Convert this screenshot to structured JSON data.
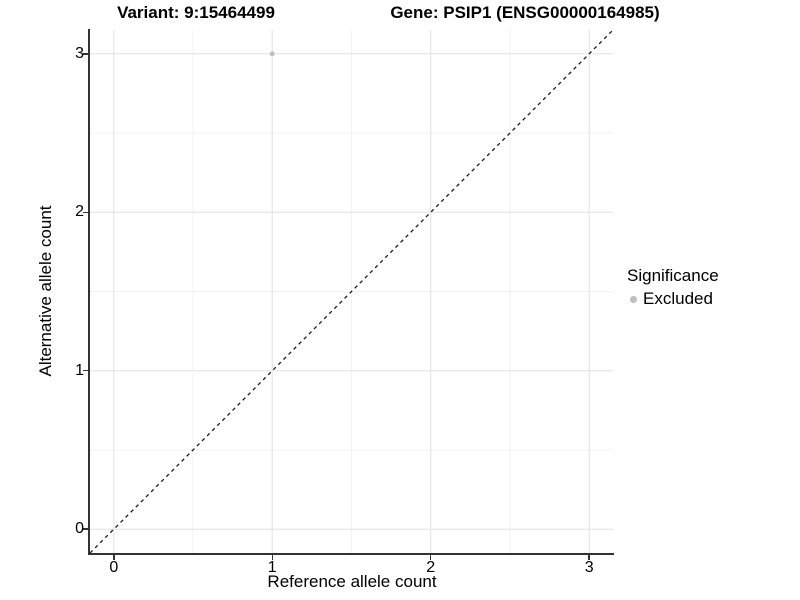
{
  "chart_data": {
    "type": "scatter",
    "title_left": "Variant: 9:15464499",
    "title_right": "Gene: PSIP1 (ENSG00000164985)",
    "xlabel": "Reference allele count",
    "ylabel": "Alternative allele count",
    "xlim": [
      -0.15,
      3.15
    ],
    "ylim": [
      -0.15,
      3.15
    ],
    "x_ticks": [
      0,
      1,
      2,
      3
    ],
    "y_ticks": [
      0,
      1,
      2,
      3
    ],
    "x_minor": [
      0.5,
      1.5,
      2.5
    ],
    "y_minor": [
      0.5,
      1.5,
      2.5
    ],
    "grid": "major+minor",
    "identity_line": {
      "style": "dashed",
      "color": "#1a1a1a",
      "from": [
        -0.15,
        -0.15
      ],
      "to": [
        3.15,
        3.15
      ]
    },
    "series": [
      {
        "name": "Excluded",
        "color": "#bebebe",
        "point_radius": 2.4,
        "points": [
          {
            "x": 1,
            "y": 3
          }
        ]
      }
    ],
    "legend": {
      "title": "Significance",
      "position": "right",
      "items": [
        {
          "label": "Excluded",
          "color": "#bebebe"
        }
      ]
    },
    "colors": {
      "grid_major": "#e6e6e6",
      "grid_minor": "#f2f2f2",
      "axis_line": "#333333",
      "text": "#000000",
      "background": "#ffffff"
    }
  }
}
